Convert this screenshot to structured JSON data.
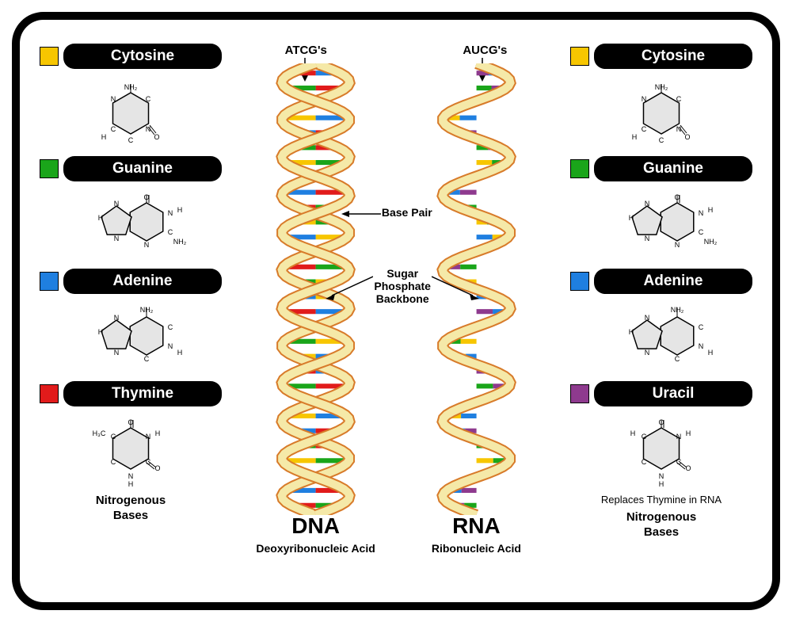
{
  "frame": {
    "border_color": "#000000",
    "border_width": 10,
    "radius": 40,
    "bg": "#ffffff"
  },
  "colors": {
    "cytosine": "#f7c600",
    "guanine": "#1aa51a",
    "adenine": "#1f7fe0",
    "thymine": "#e11b1b",
    "uracil": "#8e3a8e",
    "backbone_fill": "#f5e9a8",
    "backbone_stroke": "#d87b2a",
    "molecule_fill": "#e5e5e5",
    "molecule_stroke": "#000000"
  },
  "left_bases": [
    {
      "name": "Cytosine",
      "color_key": "cytosine",
      "mol": "cytosine"
    },
    {
      "name": "Guanine",
      "color_key": "guanine",
      "mol": "guanine"
    },
    {
      "name": "Adenine",
      "color_key": "adenine",
      "mol": "adenine"
    },
    {
      "name": "Thymine",
      "color_key": "thymine",
      "mol": "thymine"
    }
  ],
  "right_bases": [
    {
      "name": "Cytosine",
      "color_key": "cytosine",
      "mol": "cytosine"
    },
    {
      "name": "Guanine",
      "color_key": "guanine",
      "mol": "guanine"
    },
    {
      "name": "Adenine",
      "color_key": "adenine",
      "mol": "adenine"
    },
    {
      "name": "Uracil",
      "color_key": "uracil",
      "mol": "uracil"
    }
  ],
  "left_footer": "Nitrogenous\nBases",
  "right_footer_small": "Replaces Thymine in RNA",
  "right_footer": "Nitrogenous\nBases",
  "dna": {
    "top_label": "ATCG's",
    "title": "DNA",
    "subtitle": "Deoxyribonucleic Acid"
  },
  "rna": {
    "top_label": "AUCG's",
    "title": "RNA",
    "subtitle": "Ribonucleic Acid"
  },
  "annotations": {
    "base_pair": "Base Pair",
    "backbone": "Sugar\nPhosphate\nBackbone"
  },
  "helix": {
    "turns": 6,
    "rung_colors_dna": [
      "adenine",
      "thymine",
      "guanine",
      "cytosine"
    ],
    "rung_colors_rna": [
      "adenine",
      "uracil",
      "guanine",
      "cytosine"
    ]
  }
}
